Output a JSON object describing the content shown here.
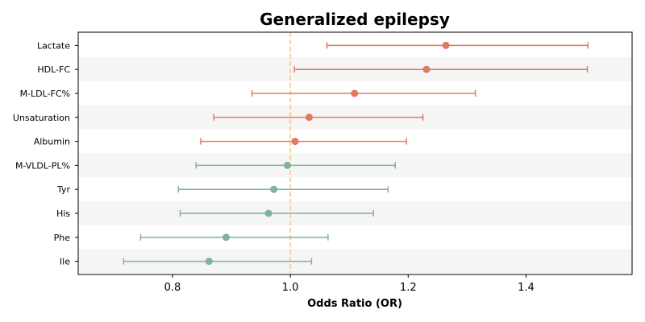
{
  "chart_data": {
    "type": "forest",
    "title": "Generalized epilepsy",
    "xlabel": "Odds Ratio (OR)",
    "ylabel": "",
    "xlim": [
      0.64,
      1.58
    ],
    "xticks": [
      0.8,
      1.0,
      1.2,
      1.4
    ],
    "reference_line": 1.0,
    "grid": false,
    "colors": {
      "risk": "#e07a5f",
      "protective": "#81b29a",
      "reference": "#f2cc8f",
      "band": "#f5f5f5",
      "axis": "#000000"
    },
    "rows": [
      {
        "label": "Lactate",
        "or": 1.264,
        "lower": 1.062,
        "upper": 1.505,
        "group": "risk"
      },
      {
        "label": "HDL-FC",
        "or": 1.231,
        "lower": 1.007,
        "upper": 1.504,
        "group": "risk"
      },
      {
        "label": "M-LDL-FC%",
        "or": 1.109,
        "lower": 0.935,
        "upper": 1.314,
        "group": "risk"
      },
      {
        "label": "Unsaturation",
        "or": 1.032,
        "lower": 0.87,
        "upper": 1.225,
        "group": "risk"
      },
      {
        "label": "Albumin",
        "or": 1.008,
        "lower": 0.848,
        "upper": 1.197,
        "group": "risk"
      },
      {
        "label": "M-VLDL-PL%",
        "or": 0.995,
        "lower": 0.84,
        "upper": 1.178,
        "group": "protective"
      },
      {
        "label": "Tyr",
        "or": 0.972,
        "lower": 0.81,
        "upper": 1.166,
        "group": "protective"
      },
      {
        "label": "His",
        "or": 0.963,
        "lower": 0.813,
        "upper": 1.141,
        "group": "protective"
      },
      {
        "label": "Phe",
        "or": 0.891,
        "lower": 0.746,
        "upper": 1.064,
        "group": "protective"
      },
      {
        "label": "Ile",
        "or": 0.862,
        "lower": 0.717,
        "upper": 1.036,
        "group": "protective"
      }
    ]
  }
}
